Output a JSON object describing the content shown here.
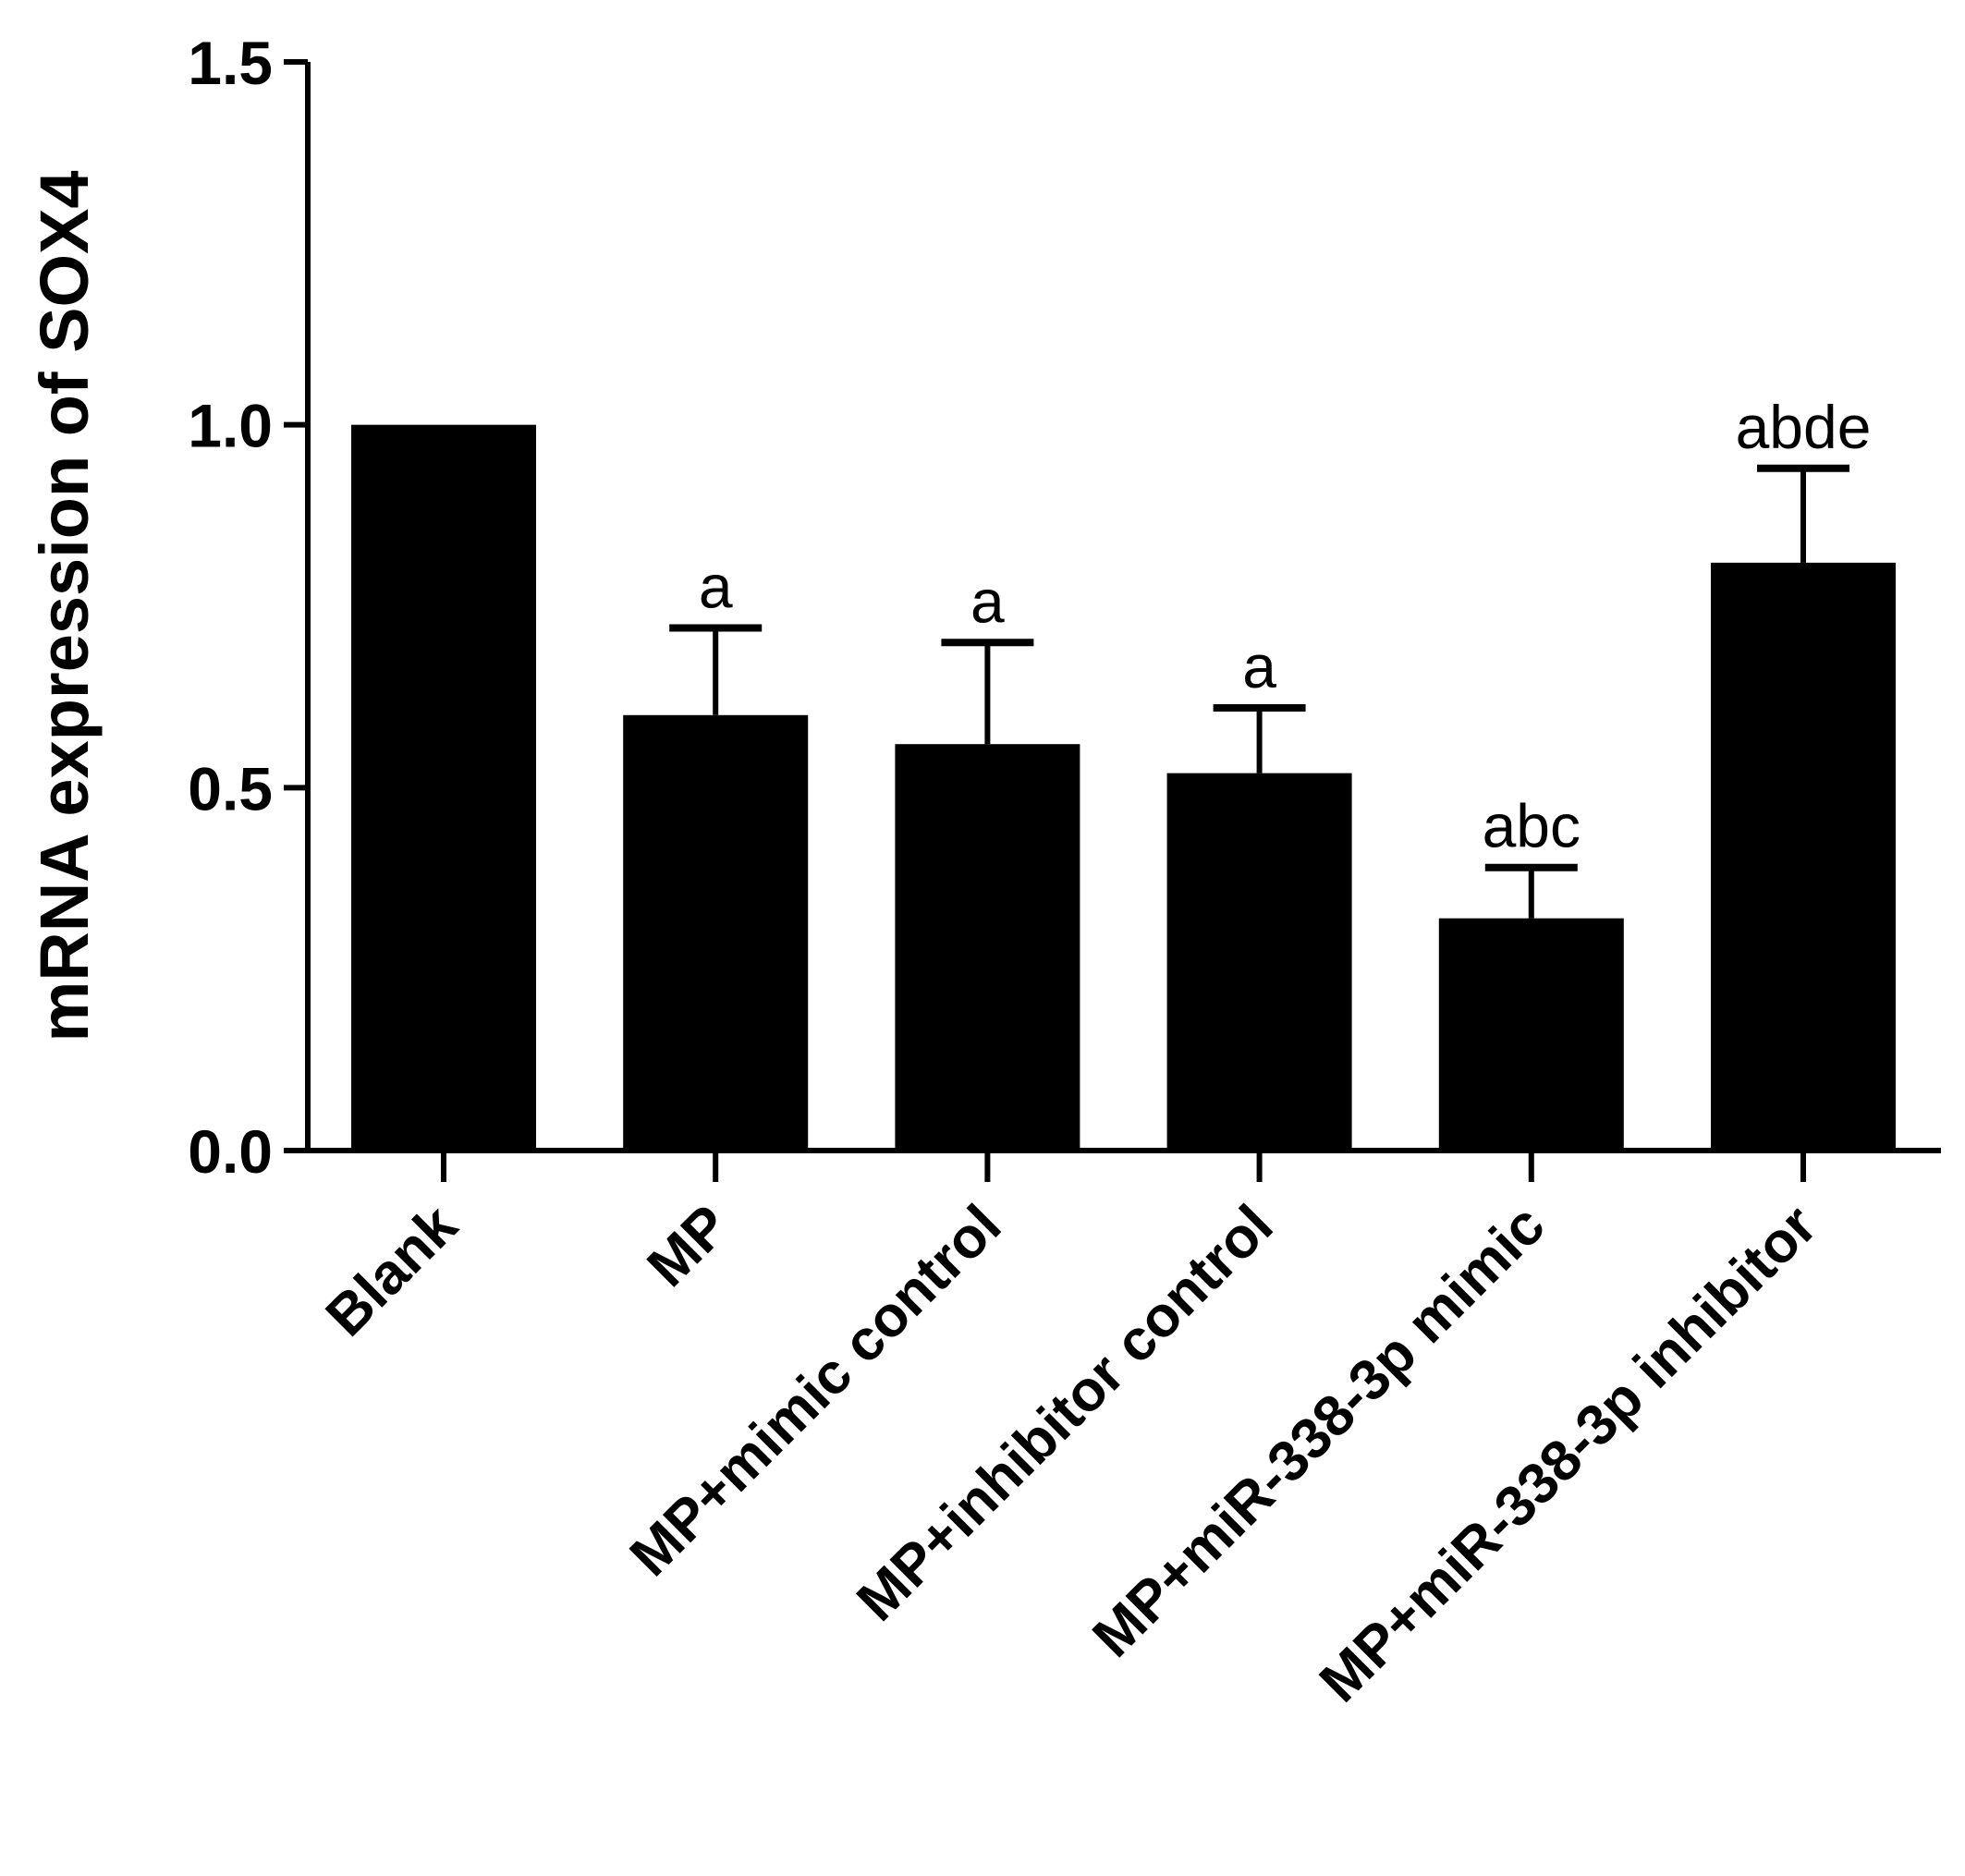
{
  "chart_data": {
    "type": "bar",
    "title": "",
    "xlabel": "",
    "ylabel": "mRNA expression of SOX4",
    "ylim": [
      0,
      1.5
    ],
    "yticks": [
      "0.0",
      "0.5",
      "1.0",
      "1.5"
    ],
    "bar_color": "#000000",
    "grid": false,
    "categories": [
      "Blank",
      "MP",
      "MP+mimic  control",
      "MP+inhibitor  control",
      "MP+miR-338-3p mimic",
      "MP+miR-338-3p inhibitor"
    ],
    "values": [
      1.0,
      0.6,
      0.56,
      0.52,
      0.32,
      0.81
    ],
    "errors": [
      0,
      0.12,
      0.14,
      0.09,
      0.07,
      0.13
    ],
    "significance_labels": [
      "",
      "a",
      "a",
      "a",
      "abc",
      "abde"
    ]
  }
}
